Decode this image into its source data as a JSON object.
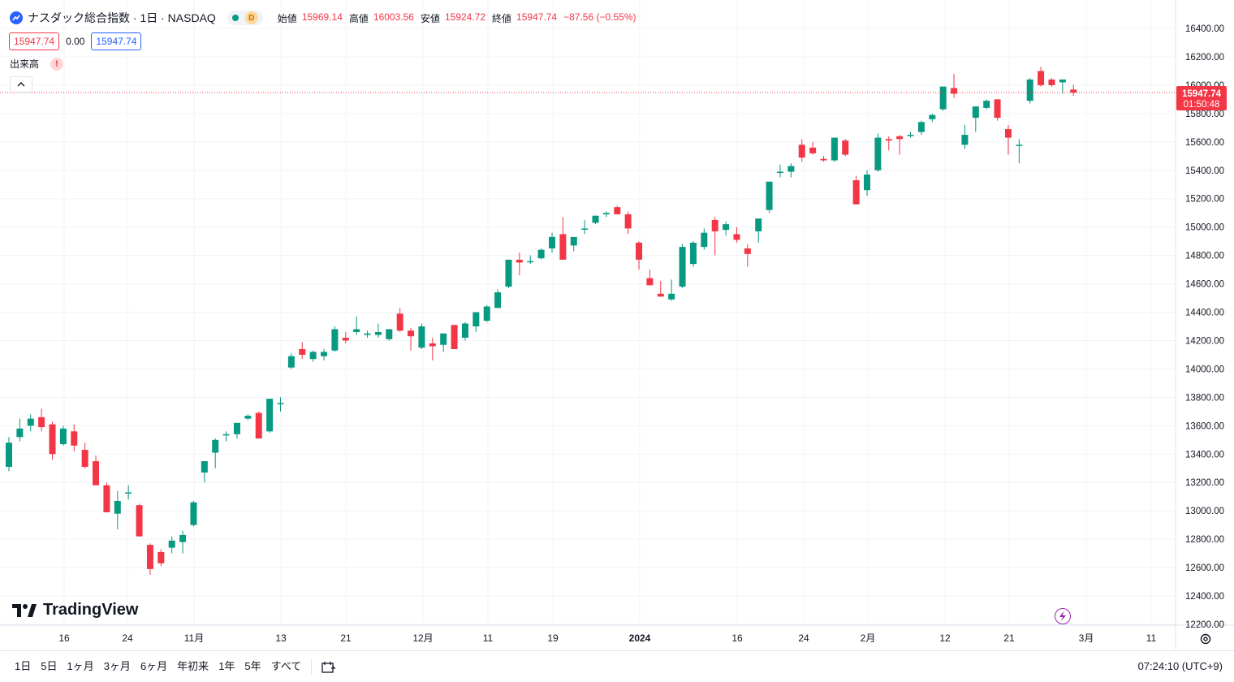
{
  "legend": {
    "title": "ナスダック総合指数 · 1日 · NASDAQ",
    "market_status_badge": "D",
    "ohlc": [
      {
        "label": "始値",
        "value": "15969.14"
      },
      {
        "label": "高値",
        "value": "16003.56"
      },
      {
        "label": "安値",
        "value": "15924.72"
      },
      {
        "label": "終値",
        "value": "15947.74"
      }
    ],
    "change": "−87.56 (−0.55%)"
  },
  "quote": {
    "sell": "15947.74",
    "spread": "0.00",
    "buy": "15947.74"
  },
  "volume_label": "出来高",
  "warning_mark": "!",
  "branding": "TradingView",
  "price_label": {
    "price": "15947.74",
    "countdown": "01:50:48"
  },
  "bottom_bar": {
    "ranges": [
      "1日",
      "5日",
      "1ヶ月",
      "3ヶ月",
      "6ヶ月",
      "年初来",
      "1年",
      "5年",
      "すべて"
    ],
    "clock": "07:24:10 (UTC+9)"
  },
  "colors": {
    "up": "#089981",
    "down": "#f23645",
    "grid": "#f0f3fa",
    "axis_text": "#131722",
    "accent": "#2962ff"
  },
  "icons": [
    "tradingview-symbol-icon",
    "caret-up-icon",
    "date-range-icon",
    "lightning-icon",
    "gear-icon"
  ],
  "chart_data": {
    "type": "candlestick",
    "y_ticks": [
      "16400.00",
      "16200.00",
      "16000.00",
      "15800.00",
      "15600.00",
      "15400.00",
      "15200.00",
      "15000.00",
      "14800.00",
      "14600.00",
      "14400.00",
      "14200.00",
      "14000.00",
      "13800.00",
      "13600.00",
      "13400.00",
      "13200.00",
      "13000.00",
      "12800.00",
      "12600.00",
      "12400.00",
      "12200.00"
    ],
    "ylim": [
      12200,
      16400
    ],
    "x_ticks": [
      "16",
      "24",
      "11月",
      "13",
      "21",
      "12月",
      "11",
      "19",
      "2024",
      "16",
      "24",
      "2月",
      "12",
      "21",
      "3月",
      "11"
    ],
    "candles": [
      {
        "o": 13310,
        "h": 13520,
        "l": 13280,
        "c": 13480
      },
      {
        "o": 13520,
        "h": 13650,
        "l": 13490,
        "c": 13580
      },
      {
        "o": 13600,
        "h": 13680,
        "l": 13560,
        "c": 13650
      },
      {
        "o": 13660,
        "h": 13720,
        "l": 13560,
        "c": 13590
      },
      {
        "o": 13610,
        "h": 13630,
        "l": 13360,
        "c": 13400
      },
      {
        "o": 13470,
        "h": 13600,
        "l": 13460,
        "c": 13580
      },
      {
        "o": 13560,
        "h": 13610,
        "l": 13420,
        "c": 13460
      },
      {
        "o": 13430,
        "h": 13480,
        "l": 13300,
        "c": 13310
      },
      {
        "o": 13350,
        "h": 13390,
        "l": 13180,
        "c": 13180
      },
      {
        "o": 13180,
        "h": 13200,
        "l": 12990,
        "c": 12990
      },
      {
        "o": 12980,
        "h": 13140,
        "l": 12870,
        "c": 13070
      },
      {
        "o": 13130,
        "h": 13180,
        "l": 13080,
        "c": 13130
      },
      {
        "o": 13040,
        "h": 13050,
        "l": 12820,
        "c": 12820
      },
      {
        "o": 12760,
        "h": 12770,
        "l": 12550,
        "c": 12590
      },
      {
        "o": 12710,
        "h": 12730,
        "l": 12610,
        "c": 12630
      },
      {
        "o": 12740,
        "h": 12820,
        "l": 12700,
        "c": 12790
      },
      {
        "o": 12780,
        "h": 12860,
        "l": 12700,
        "c": 12830
      },
      {
        "o": 12900,
        "h": 13070,
        "l": 12890,
        "c": 13060
      },
      {
        "o": 13270,
        "h": 13350,
        "l": 13200,
        "c": 13350
      },
      {
        "o": 13410,
        "h": 13510,
        "l": 13300,
        "c": 13500
      },
      {
        "o": 13540,
        "h": 13560,
        "l": 13490,
        "c": 13540
      },
      {
        "o": 13540,
        "h": 13620,
        "l": 13510,
        "c": 13620
      },
      {
        "o": 13650,
        "h": 13680,
        "l": 13640,
        "c": 13670
      },
      {
        "o": 13690,
        "h": 13700,
        "l": 13510,
        "c": 13510
      },
      {
        "o": 13560,
        "h": 13790,
        "l": 13550,
        "c": 13790
      },
      {
        "o": 13760,
        "h": 13800,
        "l": 13700,
        "c": 13760
      },
      {
        "o": 14010,
        "h": 14110,
        "l": 14000,
        "c": 14090
      },
      {
        "o": 14140,
        "h": 14190,
        "l": 14070,
        "c": 14100
      },
      {
        "o": 14070,
        "h": 14130,
        "l": 14050,
        "c": 14120
      },
      {
        "o": 14090,
        "h": 14140,
        "l": 14060,
        "c": 14120
      },
      {
        "o": 14130,
        "h": 14300,
        "l": 14120,
        "c": 14280
      },
      {
        "o": 14220,
        "h": 14260,
        "l": 14180,
        "c": 14200
      },
      {
        "o": 14260,
        "h": 14370,
        "l": 14240,
        "c": 14280
      },
      {
        "o": 14240,
        "h": 14270,
        "l": 14220,
        "c": 14250
      },
      {
        "o": 14240,
        "h": 14320,
        "l": 14220,
        "c": 14260
      },
      {
        "o": 14210,
        "h": 14280,
        "l": 14200,
        "c": 14280
      },
      {
        "o": 14390,
        "h": 14430,
        "l": 14260,
        "c": 14270
      },
      {
        "o": 14270,
        "h": 14290,
        "l": 14130,
        "c": 14230
      },
      {
        "o": 14150,
        "h": 14320,
        "l": 14140,
        "c": 14300
      },
      {
        "o": 14180,
        "h": 14220,
        "l": 14060,
        "c": 14160
      },
      {
        "o": 14170,
        "h": 14250,
        "l": 14120,
        "c": 14250
      },
      {
        "o": 14310,
        "h": 14310,
        "l": 14140,
        "c": 14140
      },
      {
        "o": 14220,
        "h": 14330,
        "l": 14200,
        "c": 14320
      },
      {
        "o": 14300,
        "h": 14400,
        "l": 14260,
        "c": 14400
      },
      {
        "o": 14340,
        "h": 14450,
        "l": 14330,
        "c": 14440
      },
      {
        "o": 14430,
        "h": 14560,
        "l": 14430,
        "c": 14540
      },
      {
        "o": 14580,
        "h": 14770,
        "l": 14570,
        "c": 14770
      },
      {
        "o": 14770,
        "h": 14820,
        "l": 14660,
        "c": 14750
      },
      {
        "o": 14760,
        "h": 14800,
        "l": 14740,
        "c": 14760
      },
      {
        "o": 14780,
        "h": 14850,
        "l": 14770,
        "c": 14840
      },
      {
        "o": 14850,
        "h": 14960,
        "l": 14820,
        "c": 14930
      },
      {
        "o": 14950,
        "h": 15070,
        "l": 14770,
        "c": 14770
      },
      {
        "o": 14870,
        "h": 14930,
        "l": 14830,
        "c": 14930
      },
      {
        "o": 14990,
        "h": 15050,
        "l": 14950,
        "c": 14990
      },
      {
        "o": 15030,
        "h": 15080,
        "l": 15020,
        "c": 15080
      },
      {
        "o": 15090,
        "h": 15110,
        "l": 15070,
        "c": 15100
      },
      {
        "o": 15140,
        "h": 15150,
        "l": 15090,
        "c": 15090
      },
      {
        "o": 15090,
        "h": 15110,
        "l": 14950,
        "c": 14990
      },
      {
        "o": 14890,
        "h": 14900,
        "l": 14700,
        "c": 14770
      },
      {
        "o": 14640,
        "h": 14700,
        "l": 14590,
        "c": 14590
      },
      {
        "o": 14530,
        "h": 14620,
        "l": 14510,
        "c": 14510
      },
      {
        "o": 14490,
        "h": 14630,
        "l": 14480,
        "c": 14530
      },
      {
        "o": 14580,
        "h": 14880,
        "l": 14570,
        "c": 14860
      },
      {
        "o": 14740,
        "h": 14900,
        "l": 14720,
        "c": 14890
      },
      {
        "o": 14860,
        "h": 14990,
        "l": 14840,
        "c": 14960
      },
      {
        "o": 15050,
        "h": 15070,
        "l": 14800,
        "c": 14970
      },
      {
        "o": 14980,
        "h": 15040,
        "l": 14940,
        "c": 15020
      },
      {
        "o": 14950,
        "h": 15000,
        "l": 14890,
        "c": 14910
      },
      {
        "o": 14850,
        "h": 14880,
        "l": 14720,
        "c": 14810
      },
      {
        "o": 14970,
        "h": 15060,
        "l": 14890,
        "c": 15060
      },
      {
        "o": 15120,
        "h": 15320,
        "l": 15100,
        "c": 15320
      },
      {
        "o": 15390,
        "h": 15440,
        "l": 15350,
        "c": 15390
      },
      {
        "o": 15390,
        "h": 15450,
        "l": 15350,
        "c": 15430
      },
      {
        "o": 15580,
        "h": 15620,
        "l": 15460,
        "c": 15490
      },
      {
        "o": 15560,
        "h": 15600,
        "l": 15510,
        "c": 15520
      },
      {
        "o": 15480,
        "h": 15500,
        "l": 15460,
        "c": 15470
      },
      {
        "o": 15470,
        "h": 15630,
        "l": 15460,
        "c": 15630
      },
      {
        "o": 15610,
        "h": 15620,
        "l": 15500,
        "c": 15510
      },
      {
        "o": 15330,
        "h": 15360,
        "l": 15160,
        "c": 15160
      },
      {
        "o": 15260,
        "h": 15400,
        "l": 15220,
        "c": 15370
      },
      {
        "o": 15400,
        "h": 15660,
        "l": 15390,
        "c": 15630
      },
      {
        "o": 15620,
        "h": 15640,
        "l": 15540,
        "c": 15610
      },
      {
        "o": 15640,
        "h": 15650,
        "l": 15510,
        "c": 15620
      },
      {
        "o": 15650,
        "h": 15670,
        "l": 15630,
        "c": 15650
      },
      {
        "o": 15670,
        "h": 15750,
        "l": 15650,
        "c": 15740
      },
      {
        "o": 15760,
        "h": 15800,
        "l": 15740,
        "c": 15790
      },
      {
        "o": 15830,
        "h": 15990,
        "l": 15820,
        "c": 15990
      },
      {
        "o": 15980,
        "h": 16080,
        "l": 15910,
        "c": 15940
      },
      {
        "o": 15580,
        "h": 15720,
        "l": 15550,
        "c": 15650
      },
      {
        "o": 15770,
        "h": 15850,
        "l": 15670,
        "c": 15850
      },
      {
        "o": 15840,
        "h": 15900,
        "l": 15830,
        "c": 15890
      },
      {
        "o": 15900,
        "h": 15900,
        "l": 15750,
        "c": 15770
      },
      {
        "o": 15690,
        "h": 15720,
        "l": 15510,
        "c": 15630
      },
      {
        "o": 15580,
        "h": 15620,
        "l": 15450,
        "c": 15580
      },
      {
        "o": 15890,
        "h": 16050,
        "l": 15870,
        "c": 16040
      },
      {
        "o": 16100,
        "h": 16130,
        "l": 15990,
        "c": 16000
      },
      {
        "o": 16040,
        "h": 16050,
        "l": 15990,
        "c": 16000
      },
      {
        "o": 16020,
        "h": 16040,
        "l": 15940,
        "c": 16040
      },
      {
        "o": 15969.14,
        "h": 16003.56,
        "l": 15924.72,
        "c": 15947.74
      }
    ]
  }
}
